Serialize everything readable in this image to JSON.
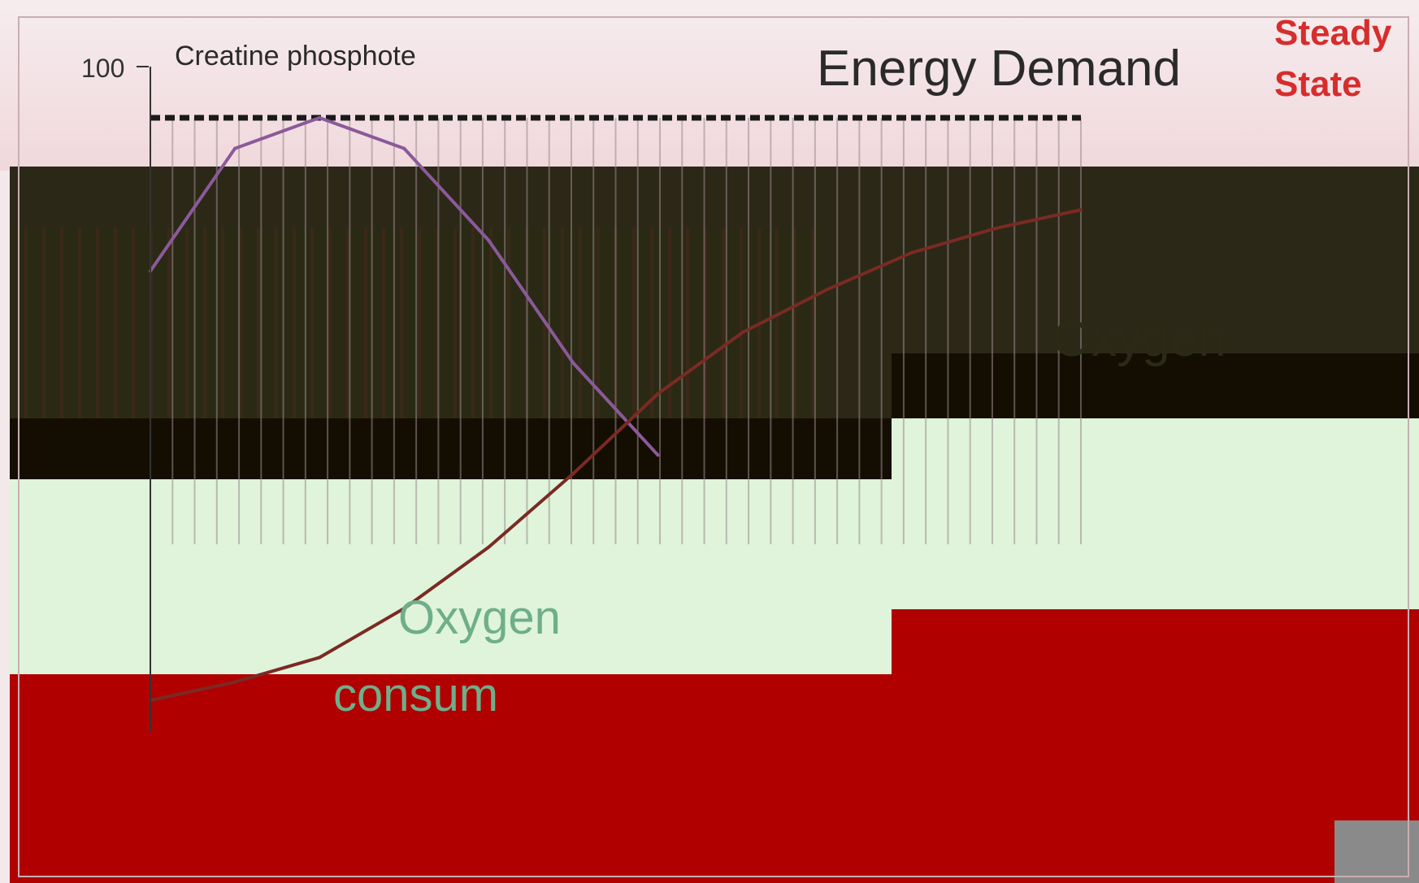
{
  "chart_data": {
    "type": "line",
    "title": "Energy Demand",
    "annotation_top_right": {
      "line1": "Steady",
      "line2": "State"
    },
    "y_tick_labels": [
      "100"
    ],
    "ylim": [
      0,
      100
    ],
    "series": [
      {
        "name": "Creatine phosphote",
        "x": [
          0,
          5,
          10,
          15,
          20,
          25,
          30
        ],
        "values": [
          75,
          95,
          100,
          95,
          80,
          60,
          45
        ]
      },
      {
        "name": "Oxygen",
        "x": [
          0,
          5,
          10,
          15,
          20,
          25,
          30,
          35,
          40,
          45,
          50,
          55
        ],
        "values": [
          5,
          8,
          12,
          20,
          30,
          42,
          55,
          65,
          72,
          78,
          82,
          85
        ]
      }
    ],
    "labels": {
      "oxygen_consumption_line1": "Oxygen",
      "oxygen_consumption_line2": "consum"
    },
    "grid": true,
    "legend": "inline"
  },
  "colors": {
    "background_top": "#f3dfe2",
    "background_mid": "#2a2616",
    "background_bottom": "#dff4da",
    "creatine_line": "#8a5a9a",
    "oxygen_line": "#7a2a24",
    "steady_text": "#d62d2d",
    "energy_demand_line": "#1a1a1a",
    "red_band": "#b00000"
  }
}
